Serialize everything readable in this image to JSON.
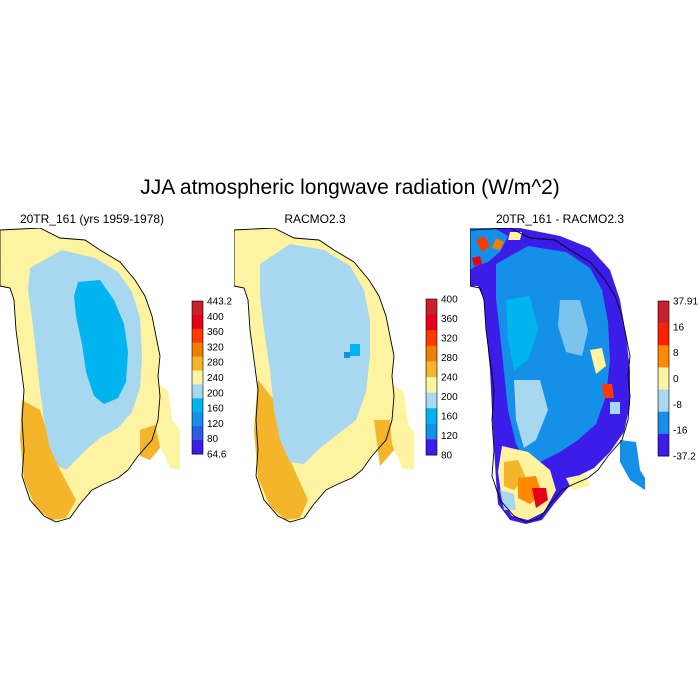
{
  "title": "JJA atmospheric longwave radiation (W/m^2)",
  "panels": [
    {
      "title": "20TR_161 (yrs 1959-1978)",
      "colorbar": {
        "labels": [
          "443.2",
          "400",
          "360",
          "320",
          "280",
          "240",
          "200",
          "160",
          "120",
          "80",
          "64.6"
        ],
        "colors": [
          "#c8202c",
          "#e8001a",
          "#ff3a00",
          "#f07f00",
          "#f5b52a",
          "#fdf3a0",
          "#a8d8f0",
          "#00b4f0",
          "#1490e8",
          "#2a5ce8",
          "#3c1ce8"
        ]
      }
    },
    {
      "title": "RACMO2.3",
      "colorbar": {
        "labels": [
          "400",
          "360",
          "320",
          "280",
          "240",
          "200",
          "160",
          "120",
          "80"
        ],
        "colors": [
          "#c8202c",
          "#e8001a",
          "#ff3a00",
          "#f07f00",
          "#f5b52a",
          "#fdf3a0",
          "#a8d8f0",
          "#00b4f0",
          "#1490e8",
          "#3c1ce8"
        ]
      }
    },
    {
      "title": "20TR_161 - RACMO2.3",
      "colorbar": {
        "labels": [
          "37.91",
          "16",
          "8",
          "0",
          "-8",
          "-16",
          "-37.2"
        ],
        "colors": [
          "#c8202c",
          "#ff2000",
          "#ff8a00",
          "#fdf3a0",
          "#a8d8f0",
          "#1490e8",
          "#3c1ce8"
        ]
      }
    }
  ]
}
